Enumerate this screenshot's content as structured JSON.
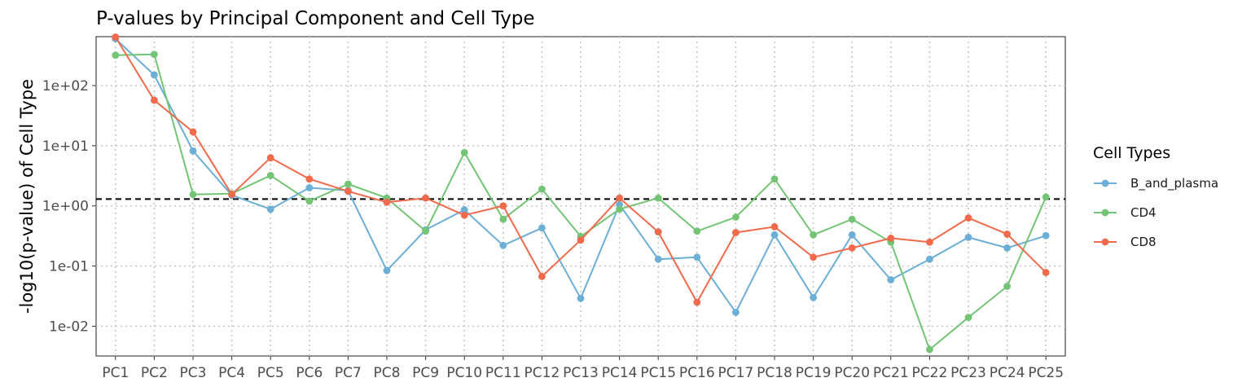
{
  "chart_data": {
    "type": "line",
    "title": "P-values by Principal Component and Cell Type",
    "xlabel": "",
    "ylabel": "-log10(p-value) of Cell Type",
    "y_scale": "log10",
    "ylim": [
      0.0032,
      650
    ],
    "y_ticks": [
      0.01,
      0.1,
      1,
      10,
      100
    ],
    "y_tick_labels": [
      "1e-02",
      "1e-01",
      "1e+00",
      "1e+01",
      "1e+02"
    ],
    "grid": true,
    "threshold": {
      "value": 1.3,
      "style": "dashed",
      "color": "#000000"
    },
    "categories": [
      "PC1",
      "PC2",
      "PC3",
      "PC4",
      "PC5",
      "PC6",
      "PC7",
      "PC8",
      "PC9",
      "PC10",
      "PC11",
      "PC12",
      "PC13",
      "PC14",
      "PC15",
      "PC16",
      "PC17",
      "PC18",
      "PC19",
      "PC20",
      "PC21",
      "PC22",
      "PC23",
      "PC24",
      "PC25"
    ],
    "legend": {
      "title": "Cell Types",
      "placement": "right"
    },
    "series": [
      {
        "name": "B_and_plasma",
        "color": "#6BAED6",
        "values": [
          600,
          150,
          8.2,
          1.5,
          0.88,
          2.0,
          1.8,
          0.084,
          0.4,
          0.86,
          0.22,
          0.43,
          0.029,
          1.05,
          0.13,
          0.14,
          0.017,
          0.33,
          0.03,
          0.33,
          0.059,
          0.13,
          0.3,
          0.2,
          0.32
        ]
      },
      {
        "name": "CD4",
        "color": "#74C476",
        "values": [
          320,
          330,
          1.55,
          1.6,
          3.2,
          1.2,
          2.3,
          1.35,
          0.38,
          7.7,
          0.6,
          1.9,
          0.31,
          0.88,
          1.35,
          0.38,
          0.65,
          2.8,
          0.33,
          0.6,
          0.25,
          0.0041,
          0.014,
          0.046,
          1.4
        ]
      },
      {
        "name": "CD8",
        "color": "#F16A4C",
        "values": [
          640,
          57,
          17,
          1.55,
          6.3,
          2.8,
          1.75,
          1.15,
          1.35,
          0.7,
          1.0,
          0.067,
          0.27,
          1.35,
          0.37,
          0.025,
          0.36,
          0.45,
          0.14,
          0.2,
          0.29,
          0.25,
          0.63,
          0.34,
          0.078
        ]
      }
    ]
  }
}
